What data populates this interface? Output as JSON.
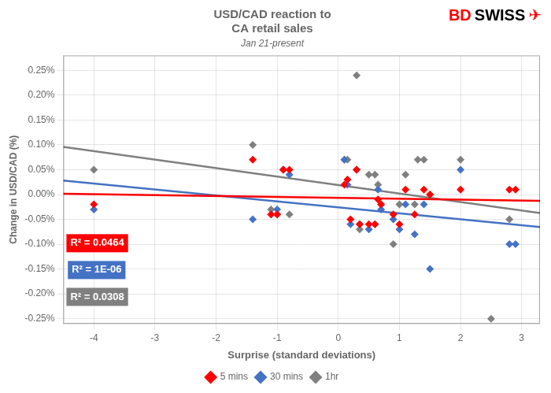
{
  "chart_data": {
    "type": "scatter",
    "title": [
      "USD/CAD reaction to",
      "CA retail sales"
    ],
    "subtitle": "Jan 21-present",
    "xlabel": "Surprise (standard deviations)",
    "ylabel": "Change in USD/CAD (%)",
    "xlim": [
      -4.5,
      3.3
    ],
    "ylim": [
      -0.0026,
      0.0028
    ],
    "xticks": [
      -4,
      -3,
      -2,
      -1,
      0,
      1,
      2,
      3
    ],
    "yticks": [
      {
        "value": -0.0025,
        "label": "-0.25%"
      },
      {
        "value": -0.002,
        "label": "-0.20%"
      },
      {
        "value": -0.0015,
        "label": "-0.15%"
      },
      {
        "value": -0.001,
        "label": "-0.10%"
      },
      {
        "value": -0.0005,
        "label": "-0.05%"
      },
      {
        "value": 0.0,
        "label": "0.00%"
      },
      {
        "value": 0.0005,
        "label": "0.05%"
      },
      {
        "value": 0.001,
        "label": "0.10%"
      },
      {
        "value": 0.0015,
        "label": "0.15%"
      },
      {
        "value": 0.002,
        "label": "0.20%"
      },
      {
        "value": 0.0025,
        "label": "0.25%"
      }
    ],
    "grid": true,
    "legend": "bottom",
    "series": [
      {
        "name": "5 mins",
        "type": "scatter",
        "color": "#FF0000",
        "marker": "diamond",
        "x": [
          -4.0,
          -1.4,
          -1.1,
          -1.0,
          -0.9,
          -0.8,
          0.1,
          0.15,
          0.2,
          0.3,
          0.35,
          0.5,
          0.6,
          0.65,
          0.7,
          0.9,
          1.0,
          1.1,
          1.25,
          1.4,
          1.5,
          2.0,
          2.8,
          2.9
        ],
        "values": [
          -0.0002,
          0.0007,
          -0.0004,
          -0.0004,
          0.0005,
          0.0005,
          0.0002,
          0.0003,
          -0.0005,
          0.0005,
          -0.0006,
          -0.0006,
          -0.0006,
          -0.0001,
          -0.0002,
          -0.0004,
          -0.0006,
          0.0001,
          -0.0004,
          0.0001,
          0.0,
          0.0001,
          0.0001,
          0.0001
        ]
      },
      {
        "name": "30 mins",
        "type": "scatter",
        "color": "#4472C4",
        "marker": "diamond",
        "x": [
          -4.0,
          -1.4,
          -1.1,
          -1.0,
          -0.9,
          -0.8,
          0.1,
          0.15,
          0.2,
          0.3,
          0.35,
          0.5,
          0.6,
          0.65,
          0.7,
          0.9,
          1.0,
          1.1,
          1.25,
          1.4,
          1.5,
          2.0,
          2.8,
          2.9
        ],
        "values": [
          -0.0003,
          -0.0005,
          -0.0004,
          -0.0003,
          0.0005,
          0.0004,
          0.0007,
          0.0002,
          -0.0006,
          0.0005,
          -0.0006,
          -0.0007,
          -0.0006,
          0.0001,
          -0.0003,
          -0.0005,
          -0.0007,
          -0.0002,
          -0.0008,
          -0.0002,
          -0.0015,
          0.0005,
          -0.001,
          -0.001
        ]
      },
      {
        "name": "1hr",
        "type": "scatter",
        "color": "#808080",
        "marker": "diamond",
        "x": [
          -4.0,
          -1.4,
          -1.1,
          -1.0,
          -0.9,
          -0.8,
          0.1,
          0.15,
          0.3,
          0.35,
          0.5,
          0.6,
          0.65,
          0.7,
          0.9,
          1.0,
          1.1,
          1.25,
          1.3,
          1.4,
          1.5,
          2.0,
          2.5,
          2.8
        ],
        "values": [
          0.0005,
          0.001,
          -0.0003,
          -0.0004,
          0.0005,
          -0.0004,
          0.0007,
          0.0007,
          0.0024,
          -0.0007,
          0.0004,
          0.0004,
          0.0002,
          -0.0002,
          -0.001,
          -0.0002,
          0.0004,
          -0.0002,
          0.0007,
          0.0007,
          0.0,
          0.0007,
          -0.0025,
          -0.0005
        ]
      },
      {
        "type": "line",
        "color": "#FF0000",
        "x": [
          -4.5,
          3.3
        ],
        "values": [
          1.48e-05,
          -0.0001286
        ]
      },
      {
        "type": "line",
        "color": "#4472C4",
        "x": [
          -4.5,
          3.3
        ],
        "values": [
          0.0002812,
          -0.0006538
        ]
      },
      {
        "type": "line",
        "color": "#808080",
        "x": [
          -4.5,
          3.3
        ],
        "values": [
          0.0009608,
          -0.0003729
        ]
      }
    ],
    "annotations": [
      {
        "text": "R² = 0.0464",
        "color": "#FF0000"
      },
      {
        "text": "R² = 1E-06",
        "color": "#4472C4"
      },
      {
        "text": "R² = 0.0308",
        "color": "#808080"
      }
    ],
    "logo": [
      {
        "text": "BD",
        "color": "#FF0000"
      },
      {
        "text": "SWISS",
        "color": "#000000"
      },
      {
        "text": "✈",
        "color": "#FF0000"
      }
    ]
  }
}
